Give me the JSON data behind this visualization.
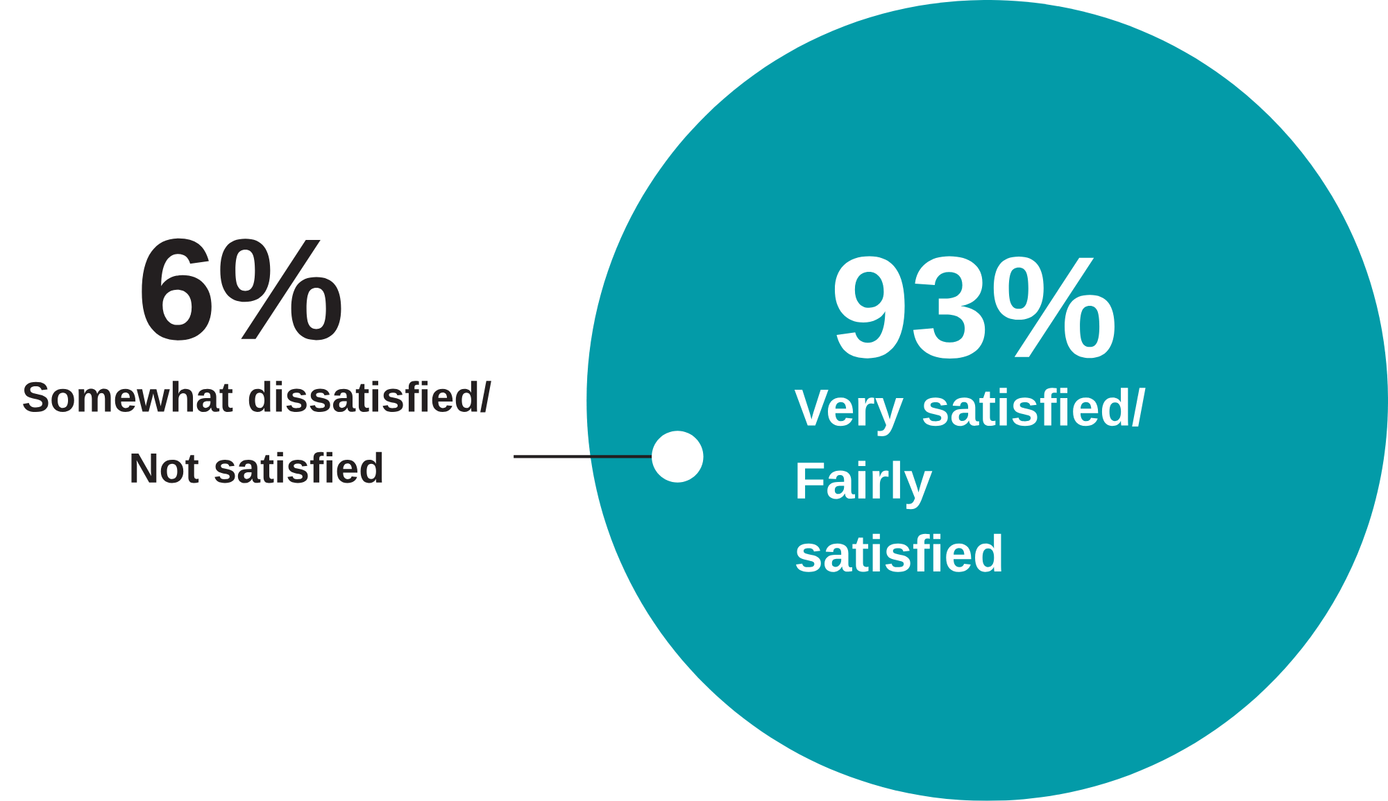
{
  "chart_data": {
    "type": "other",
    "categories": [
      "Somewhat dissatisfied/ Not satisfied",
      "Very satisfied/ Fairly satisfied"
    ],
    "values": [
      6,
      93
    ],
    "value_labels": [
      "6%",
      "93%"
    ],
    "colors": [
      "#ffffff",
      "#039ba8"
    ]
  }
}
